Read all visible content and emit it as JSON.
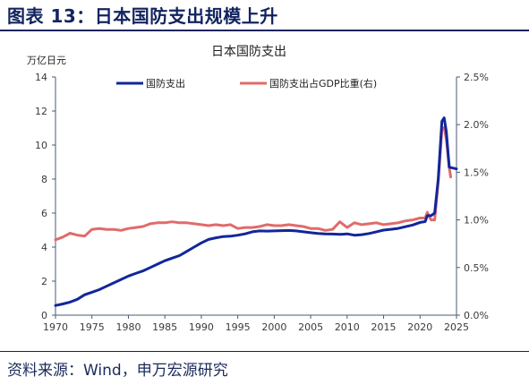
{
  "figure": {
    "title": "图表 13：日本国防支出规模上升",
    "source": "资料来源：Wind，申万宏源研究"
  },
  "colors": {
    "heading": "#12245f",
    "axis": "#4a5a7a",
    "series_spending": "#12269a",
    "series_ratio": "#e06b6b"
  },
  "chart_data": {
    "type": "line",
    "title": "日本国防支出",
    "y_unit_label": "万亿日元",
    "xlim": [
      1970,
      2025
    ],
    "ylim": [
      0,
      14
    ],
    "y2lim": [
      0,
      2.5
    ],
    "x_ticks": [
      1970,
      1975,
      1980,
      1985,
      1990,
      1995,
      2000,
      2005,
      2010,
      2015,
      2020,
      2025
    ],
    "y_ticks": [
      0,
      2,
      4,
      6,
      8,
      10,
      12,
      14
    ],
    "y2_ticks": [
      "0.0%",
      "0.5%",
      "1.0%",
      "1.5%",
      "2.0%",
      "2.5%"
    ],
    "y2_tick_values": [
      0,
      0.5,
      1.0,
      1.5,
      2.0,
      2.5
    ],
    "grid": false,
    "legend_position": "top",
    "series": [
      {
        "name": "国防支出",
        "axis": "left",
        "points": [
          [
            1970,
            0.57
          ],
          [
            1971,
            0.66
          ],
          [
            1972,
            0.77
          ],
          [
            1973,
            0.93
          ],
          [
            1974,
            1.2
          ],
          [
            1975,
            1.35
          ],
          [
            1976,
            1.5
          ],
          [
            1977,
            1.7
          ],
          [
            1978,
            1.9
          ],
          [
            1979,
            2.1
          ],
          [
            1980,
            2.3
          ],
          [
            1981,
            2.45
          ],
          [
            1982,
            2.6
          ],
          [
            1983,
            2.8
          ],
          [
            1984,
            3.0
          ],
          [
            1985,
            3.2
          ],
          [
            1986,
            3.35
          ],
          [
            1987,
            3.5
          ],
          [
            1988,
            3.75
          ],
          [
            1989,
            4.0
          ],
          [
            1990,
            4.25
          ],
          [
            1991,
            4.45
          ],
          [
            1992,
            4.55
          ],
          [
            1993,
            4.62
          ],
          [
            1994,
            4.64
          ],
          [
            1995,
            4.7
          ],
          [
            1996,
            4.78
          ],
          [
            1997,
            4.9
          ],
          [
            1998,
            4.95
          ],
          [
            1999,
            4.94
          ],
          [
            2000,
            4.95
          ],
          [
            2001,
            4.97
          ],
          [
            2002,
            4.98
          ],
          [
            2003,
            4.95
          ],
          [
            2004,
            4.9
          ],
          [
            2005,
            4.85
          ],
          [
            2006,
            4.8
          ],
          [
            2007,
            4.78
          ],
          [
            2008,
            4.77
          ],
          [
            2009,
            4.75
          ],
          [
            2010,
            4.78
          ],
          [
            2011,
            4.7
          ],
          [
            2012,
            4.73
          ],
          [
            2013,
            4.8
          ],
          [
            2014,
            4.9
          ],
          [
            2015,
            5.0
          ],
          [
            2016,
            5.05
          ],
          [
            2017,
            5.1
          ],
          [
            2018,
            5.2
          ],
          [
            2019,
            5.3
          ],
          [
            2020,
            5.45
          ],
          [
            2020.7,
            5.5
          ],
          [
            2021,
            5.85
          ],
          [
            2021.5,
            5.85
          ],
          [
            2022,
            6.0
          ],
          [
            2022.5,
            8.0
          ],
          [
            2023,
            11.4
          ],
          [
            2023.3,
            11.6
          ],
          [
            2023.6,
            10.8
          ],
          [
            2024,
            8.7
          ],
          [
            2024.5,
            8.65
          ],
          [
            2025,
            8.6
          ]
        ]
      },
      {
        "name": "国防支出占GDP比重(右)",
        "axis": "right",
        "points": [
          [
            1970,
            0.79
          ],
          [
            1971,
            0.82
          ],
          [
            1972,
            0.86
          ],
          [
            1973,
            0.84
          ],
          [
            1974,
            0.83
          ],
          [
            1975,
            0.9
          ],
          [
            1976,
            0.91
          ],
          [
            1977,
            0.9
          ],
          [
            1978,
            0.9
          ],
          [
            1979,
            0.89
          ],
          [
            1980,
            0.91
          ],
          [
            1981,
            0.92
          ],
          [
            1982,
            0.93
          ],
          [
            1983,
            0.96
          ],
          [
            1984,
            0.97
          ],
          [
            1985,
            0.97
          ],
          [
            1986,
            0.98
          ],
          [
            1987,
            0.97
          ],
          [
            1988,
            0.97
          ],
          [
            1989,
            0.96
          ],
          [
            1990,
            0.95
          ],
          [
            1991,
            0.94
          ],
          [
            1992,
            0.95
          ],
          [
            1993,
            0.94
          ],
          [
            1994,
            0.95
          ],
          [
            1995,
            0.91
          ],
          [
            1996,
            0.92
          ],
          [
            1997,
            0.92
          ],
          [
            1998,
            0.93
          ],
          [
            1999,
            0.95
          ],
          [
            2000,
            0.94
          ],
          [
            2001,
            0.94
          ],
          [
            2002,
            0.95
          ],
          [
            2003,
            0.94
          ],
          [
            2004,
            0.93
          ],
          [
            2005,
            0.91
          ],
          [
            2006,
            0.91
          ],
          [
            2007,
            0.89
          ],
          [
            2008,
            0.9
          ],
          [
            2009,
            0.98
          ],
          [
            2010,
            0.92
          ],
          [
            2011,
            0.97
          ],
          [
            2012,
            0.95
          ],
          [
            2013,
            0.96
          ],
          [
            2014,
            0.97
          ],
          [
            2015,
            0.95
          ],
          [
            2016,
            0.96
          ],
          [
            2017,
            0.97
          ],
          [
            2018,
            0.99
          ],
          [
            2019,
            1.0
          ],
          [
            2020,
            1.02
          ],
          [
            2020.7,
            1.02
          ],
          [
            2021,
            1.08
          ],
          [
            2021.5,
            1.0
          ],
          [
            2022,
            1.0
          ],
          [
            2022.5,
            1.4
          ],
          [
            2023,
            1.95
          ],
          [
            2023.3,
            1.97
          ],
          [
            2023.6,
            1.85
          ],
          [
            2024,
            1.55
          ],
          [
            2024.2,
            1.45
          ]
        ]
      }
    ]
  }
}
